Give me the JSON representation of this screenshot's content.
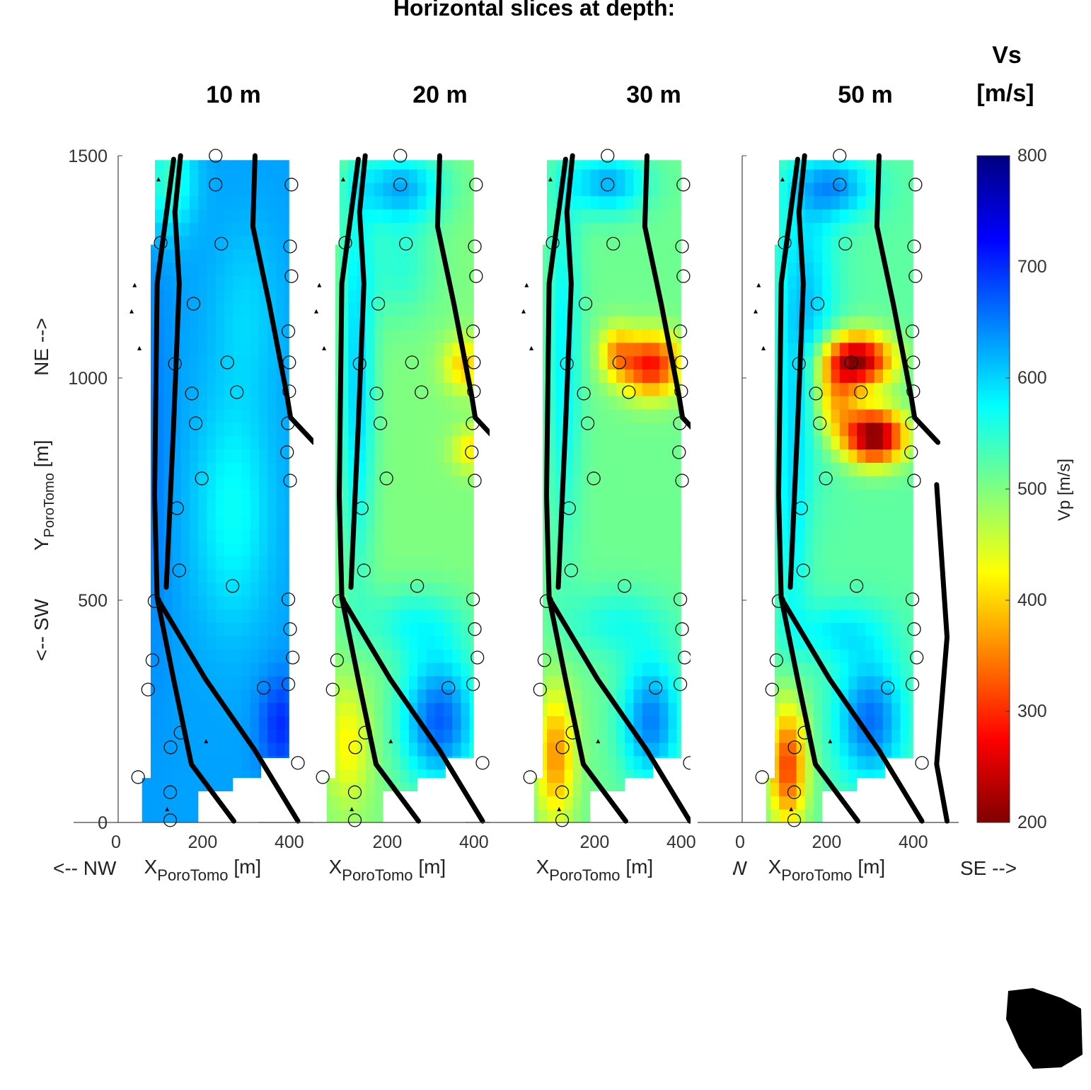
{
  "figure": {
    "title": "Horizontal slices at depth:",
    "colorbar_title_line1": "Vs",
    "colorbar_title_line2": "[m/s]",
    "colorbar_label": "Vp [m/s]",
    "y_label_left": "<-- SW",
    "y_label_main": "Y",
    "y_label_sub": "PoroTomo",
    "y_label_unit": " [m]",
    "y_label_right": "NE -->",
    "x_label_left": "<-- NW",
    "x_label_right": "SE -->",
    "x_label_main": "X",
    "x_label_sub": "PoroTomo",
    "x_label_unit": " [m]",
    "y_ticks": [
      "0",
      "500",
      "1000",
      "1500"
    ],
    "colorbar_ticks": [
      "800",
      "700",
      "600",
      "500",
      "400",
      "300",
      "200"
    ]
  },
  "chart_data": {
    "type": "heatmap",
    "colormap": "jet",
    "clim": [
      200,
      800
    ],
    "xlim": [
      0,
      450
    ],
    "ylim": [
      0,
      1500
    ],
    "domain_polygon": [
      [
        60,
        0
      ],
      [
        190,
        0
      ],
      [
        190,
        70
      ],
      [
        270,
        70
      ],
      [
        270,
        100
      ],
      [
        335,
        100
      ],
      [
        335,
        145
      ],
      [
        400,
        145
      ],
      [
        400,
        1490
      ],
      [
        90,
        1490
      ],
      [
        90,
        1300
      ],
      [
        80,
        1300
      ],
      [
        80,
        100
      ],
      [
        60,
        100
      ]
    ],
    "stations": [
      [
        230,
        1500
      ],
      [
        230,
        1435
      ],
      [
        405,
        1435
      ],
      [
        103,
        1304
      ],
      [
        243,
        1302
      ],
      [
        402,
        1296
      ],
      [
        405,
        1229
      ],
      [
        179,
        1167
      ],
      [
        398,
        1105
      ],
      [
        136,
        1032
      ],
      [
        257,
        1035
      ],
      [
        400,
        1035
      ],
      [
        175,
        965
      ],
      [
        279,
        968
      ],
      [
        400,
        970
      ],
      [
        184,
        898
      ],
      [
        397,
        898
      ],
      [
        395,
        833
      ],
      [
        198,
        774
      ],
      [
        402,
        769
      ],
      [
        141,
        707
      ],
      [
        146,
        567
      ],
      [
        269,
        532
      ],
      [
        89,
        498
      ],
      [
        398,
        502
      ],
      [
        402,
        435
      ],
      [
        84,
        365
      ],
      [
        408,
        371
      ],
      [
        74,
        299
      ],
      [
        341,
        303
      ],
      [
        398,
        311
      ],
      [
        149,
        202
      ],
      [
        126,
        169
      ],
      [
        420,
        134
      ],
      [
        51,
        102
      ],
      [
        125,
        68
      ],
      [
        125,
        5
      ]
    ],
    "triangles": [
      [
        98,
        1447
      ],
      [
        113,
        1357
      ],
      [
        43,
        1209
      ],
      [
        36,
        1150
      ],
      [
        54,
        1067
      ],
      [
        208,
        183
      ],
      [
        118,
        30
      ]
    ],
    "faults": [
      [
        [
          149,
          1500
        ],
        [
          136,
          1373
        ],
        [
          146,
          1213
        ],
        [
          133,
          895
        ],
        [
          116,
          529
        ]
      ],
      [
        [
          133,
          1492
        ],
        [
          95,
          1213
        ],
        [
          89,
          736
        ],
        [
          95,
          505
        ],
        [
          133,
          322
        ],
        [
          174,
          131
        ],
        [
          272,
          3
        ]
      ],
      [
        [
          95,
          505
        ],
        [
          207,
          322
        ],
        [
          321,
          162
        ],
        [
          420,
          3
        ]
      ],
      [
        [
          321,
          1500
        ],
        [
          316,
          1341
        ],
        [
          354,
          1166
        ],
        [
          395,
          959
        ],
        [
          403,
          911
        ],
        [
          457,
          855
        ]
      ]
    ],
    "panels": [
      {
        "title": "10 m",
        "x_ticks": [
          "0",
          "200",
          "400"
        ],
        "base": 370,
        "anomalies": [
          [
            270,
            700,
            90,
            260,
            60
          ],
          [
            120,
            1450,
            60,
            120,
            90
          ],
          [
            380,
            220,
            50,
            110,
            -70
          ],
          [
            90,
            800,
            40,
            500,
            -20
          ],
          [
            300,
            1150,
            80,
            200,
            30
          ]
        ]
      },
      {
        "title": "20 m",
        "x_ticks": [
          "200",
          "400"
        ],
        "base": 500,
        "anomalies": [
          [
            230,
            1430,
            100,
            80,
            -120
          ],
          [
            130,
            1000,
            40,
            420,
            -100
          ],
          [
            380,
            1030,
            50,
            60,
            110
          ],
          [
            400,
            840,
            50,
            50,
            90
          ],
          [
            320,
            230,
            90,
            150,
            -170
          ],
          [
            110,
            180,
            50,
            140,
            80
          ],
          [
            260,
            450,
            120,
            80,
            -60
          ],
          [
            230,
            1250,
            80,
            120,
            -50
          ]
        ]
      },
      {
        "title": "30 m",
        "x_ticks": [
          "200",
          "400"
        ],
        "base": 490,
        "anomalies": [
          [
            230,
            1440,
            90,
            70,
            -110
          ],
          [
            130,
            1050,
            40,
            400,
            -70
          ],
          [
            330,
            1030,
            70,
            70,
            230
          ],
          [
            250,
            1060,
            40,
            60,
            110
          ],
          [
            110,
            150,
            45,
            150,
            150
          ],
          [
            330,
            230,
            70,
            140,
            -140
          ],
          [
            250,
            450,
            120,
            80,
            -50
          ]
        ]
      },
      {
        "title": "50 m",
        "x_ticks": [
          "0",
          "200",
          "400"
        ],
        "x_label_left_partial": "<-- NW",
        "base": 480,
        "anomalies": [
          [
            220,
            1430,
            90,
            70,
            -110
          ],
          [
            150,
            1150,
            70,
            300,
            -90
          ],
          [
            120,
            700,
            40,
            300,
            -60
          ],
          [
            310,
            870,
            70,
            60,
            330
          ],
          [
            270,
            1040,
            80,
            60,
            310
          ],
          [
            220,
            950,
            50,
            80,
            140
          ],
          [
            110,
            130,
            45,
            140,
            210
          ],
          [
            300,
            230,
            80,
            140,
            -140
          ],
          [
            230,
            430,
            110,
            70,
            -60
          ]
        ],
        "extra_fault": [
          [
            454,
            760
          ],
          [
            478,
            417
          ],
          [
            454,
            131
          ],
          [
            478,
            3
          ]
        ]
      }
    ]
  }
}
